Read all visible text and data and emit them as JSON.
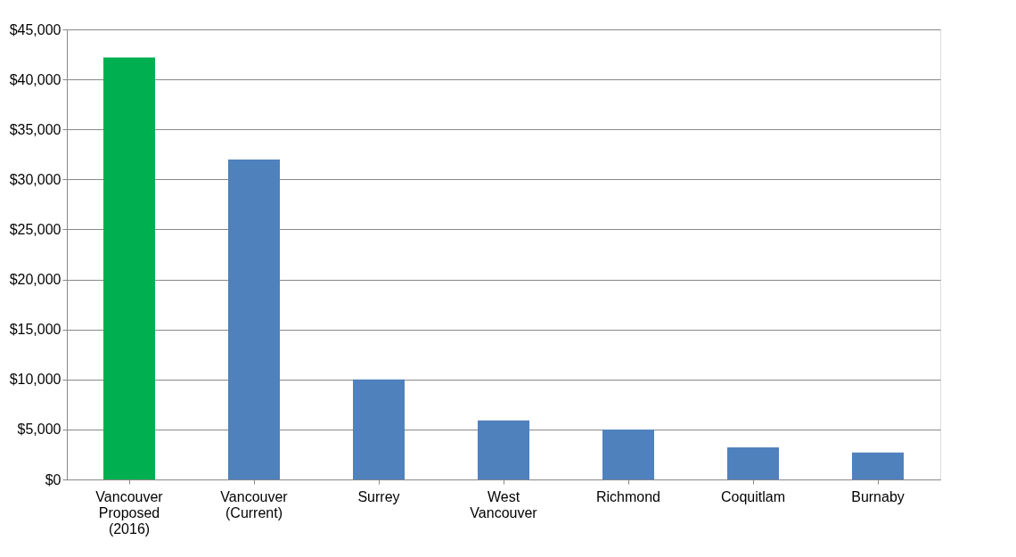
{
  "chart_data": {
    "type": "bar",
    "categories": [
      "Vancouver\nProposed\n(2016)",
      "Vancouver\n(Current)",
      "Surrey",
      "West\nVancouver",
      "Richmond",
      "Coquitlam",
      "Burnaby"
    ],
    "values": [
      42200,
      32000,
      10000,
      5900,
      5000,
      3200,
      2700
    ],
    "colors": [
      "#00b050",
      "#4f81bd",
      "#4f81bd",
      "#4f81bd",
      "#4f81bd",
      "#4f81bd",
      "#4f81bd"
    ],
    "ylim": [
      0,
      45000
    ],
    "yticks": [
      {
        "value": 0,
        "label": "$0"
      },
      {
        "value": 5000,
        "label": "$5,000"
      },
      {
        "value": 10000,
        "label": "$10,000"
      },
      {
        "value": 15000,
        "label": "$15,000"
      },
      {
        "value": 20000,
        "label": "$20,000"
      },
      {
        "value": 25000,
        "label": "$25,000"
      },
      {
        "value": 30000,
        "label": "$30,000"
      },
      {
        "value": 35000,
        "label": "$35,000"
      },
      {
        "value": 40000,
        "label": "$40,000"
      },
      {
        "value": 45000,
        "label": "$45,000"
      }
    ],
    "grid": "y"
  }
}
